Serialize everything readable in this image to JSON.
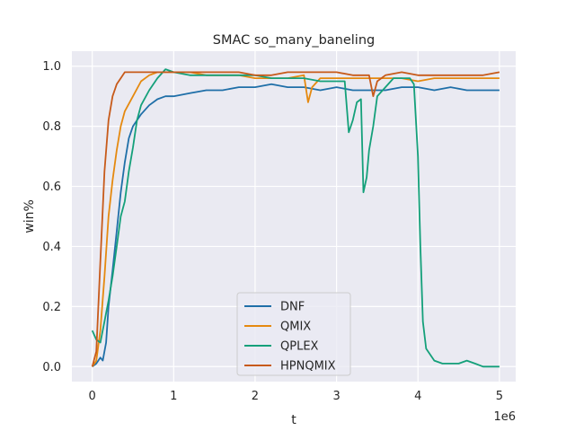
{
  "chart_data": {
    "type": "line",
    "title": "SMAC so_many_baneling",
    "xlabel": "t",
    "ylabel": "win%",
    "x_offset_label": "1e6",
    "xlim": [
      -0.25,
      5.2
    ],
    "ylim": [
      -0.05,
      1.05
    ],
    "x_ticks": [
      0,
      1,
      2,
      3,
      4,
      5
    ],
    "x_tick_labels": [
      "0",
      "1",
      "2",
      "3",
      "4",
      "5"
    ],
    "y_ticks": [
      0.0,
      0.2,
      0.4,
      0.6,
      0.8,
      1.0
    ],
    "y_tick_labels": [
      "0.0",
      "0.2",
      "0.4",
      "0.6",
      "0.8",
      "1.0"
    ],
    "grid": true,
    "legend_position": "lower-center",
    "series": [
      {
        "name": "DNF",
        "color": "#1f6fa8",
        "points": [
          [
            0,
            0.0
          ],
          [
            0.05,
            0.01
          ],
          [
            0.1,
            0.03
          ],
          [
            0.13,
            0.02
          ],
          [
            0.17,
            0.08
          ],
          [
            0.2,
            0.2
          ],
          [
            0.25,
            0.32
          ],
          [
            0.3,
            0.45
          ],
          [
            0.35,
            0.58
          ],
          [
            0.4,
            0.68
          ],
          [
            0.45,
            0.76
          ],
          [
            0.5,
            0.8
          ],
          [
            0.6,
            0.84
          ],
          [
            0.7,
            0.87
          ],
          [
            0.8,
            0.89
          ],
          [
            0.9,
            0.9
          ],
          [
            1.0,
            0.9
          ],
          [
            1.2,
            0.91
          ],
          [
            1.4,
            0.92
          ],
          [
            1.6,
            0.92
          ],
          [
            1.8,
            0.93
          ],
          [
            2.0,
            0.93
          ],
          [
            2.2,
            0.94
          ],
          [
            2.4,
            0.93
          ],
          [
            2.6,
            0.93
          ],
          [
            2.8,
            0.92
          ],
          [
            3.0,
            0.93
          ],
          [
            3.2,
            0.92
          ],
          [
            3.4,
            0.92
          ],
          [
            3.6,
            0.92
          ],
          [
            3.8,
            0.93
          ],
          [
            4.0,
            0.93
          ],
          [
            4.2,
            0.92
          ],
          [
            4.4,
            0.93
          ],
          [
            4.6,
            0.92
          ],
          [
            4.8,
            0.92
          ],
          [
            5.0,
            0.92
          ]
        ]
      },
      {
        "name": "QMIX",
        "color": "#e5890f",
        "points": [
          [
            0,
            0.0
          ],
          [
            0.05,
            0.02
          ],
          [
            0.1,
            0.12
          ],
          [
            0.15,
            0.3
          ],
          [
            0.2,
            0.5
          ],
          [
            0.25,
            0.62
          ],
          [
            0.3,
            0.72
          ],
          [
            0.35,
            0.8
          ],
          [
            0.4,
            0.85
          ],
          [
            0.5,
            0.9
          ],
          [
            0.6,
            0.95
          ],
          [
            0.7,
            0.97
          ],
          [
            0.8,
            0.98
          ],
          [
            0.9,
            0.98
          ],
          [
            1.0,
            0.98
          ],
          [
            1.2,
            0.98
          ],
          [
            1.4,
            0.97
          ],
          [
            1.6,
            0.97
          ],
          [
            1.8,
            0.97
          ],
          [
            2.0,
            0.96
          ],
          [
            2.2,
            0.96
          ],
          [
            2.4,
            0.96
          ],
          [
            2.6,
            0.97
          ],
          [
            2.65,
            0.88
          ],
          [
            2.7,
            0.93
          ],
          [
            2.8,
            0.96
          ],
          [
            3.0,
            0.96
          ],
          [
            3.2,
            0.96
          ],
          [
            3.4,
            0.96
          ],
          [
            3.6,
            0.96
          ],
          [
            3.8,
            0.96
          ],
          [
            4.0,
            0.95
          ],
          [
            4.2,
            0.96
          ],
          [
            4.4,
            0.96
          ],
          [
            4.6,
            0.96
          ],
          [
            4.8,
            0.96
          ],
          [
            5.0,
            0.96
          ]
        ]
      },
      {
        "name": "QPLEX",
        "color": "#14a07a",
        "points": [
          [
            0,
            0.12
          ],
          [
            0.05,
            0.09
          ],
          [
            0.1,
            0.08
          ],
          [
            0.15,
            0.15
          ],
          [
            0.2,
            0.22
          ],
          [
            0.25,
            0.3
          ],
          [
            0.3,
            0.4
          ],
          [
            0.35,
            0.5
          ],
          [
            0.4,
            0.55
          ],
          [
            0.45,
            0.65
          ],
          [
            0.5,
            0.73
          ],
          [
            0.55,
            0.82
          ],
          [
            0.6,
            0.87
          ],
          [
            0.7,
            0.92
          ],
          [
            0.8,
            0.96
          ],
          [
            0.9,
            0.99
          ],
          [
            1.0,
            0.98
          ],
          [
            1.2,
            0.97
          ],
          [
            1.4,
            0.97
          ],
          [
            1.6,
            0.97
          ],
          [
            1.8,
            0.97
          ],
          [
            2.0,
            0.97
          ],
          [
            2.2,
            0.96
          ],
          [
            2.4,
            0.96
          ],
          [
            2.6,
            0.96
          ],
          [
            2.8,
            0.95
          ],
          [
            3.0,
            0.95
          ],
          [
            3.1,
            0.95
          ],
          [
            3.15,
            0.78
          ],
          [
            3.2,
            0.82
          ],
          [
            3.25,
            0.88
          ],
          [
            3.3,
            0.89
          ],
          [
            3.33,
            0.58
          ],
          [
            3.37,
            0.63
          ],
          [
            3.4,
            0.72
          ],
          [
            3.45,
            0.8
          ],
          [
            3.5,
            0.9
          ],
          [
            3.6,
            0.93
          ],
          [
            3.7,
            0.96
          ],
          [
            3.8,
            0.96
          ],
          [
            3.9,
            0.96
          ],
          [
            3.95,
            0.94
          ],
          [
            4.0,
            0.7
          ],
          [
            4.03,
            0.4
          ],
          [
            4.06,
            0.15
          ],
          [
            4.1,
            0.06
          ],
          [
            4.2,
            0.02
          ],
          [
            4.3,
            0.01
          ],
          [
            4.5,
            0.01
          ],
          [
            4.6,
            0.02
          ],
          [
            4.7,
            0.01
          ],
          [
            4.8,
            0.0
          ],
          [
            5.0,
            0.0
          ]
        ]
      },
      {
        "name": "HPNQMIX",
        "color": "#c75a1a",
        "points": [
          [
            0,
            0.0
          ],
          [
            0.05,
            0.05
          ],
          [
            0.1,
            0.35
          ],
          [
            0.15,
            0.65
          ],
          [
            0.2,
            0.82
          ],
          [
            0.25,
            0.9
          ],
          [
            0.3,
            0.94
          ],
          [
            0.35,
            0.96
          ],
          [
            0.4,
            0.98
          ],
          [
            0.5,
            0.98
          ],
          [
            0.6,
            0.98
          ],
          [
            0.7,
            0.98
          ],
          [
            0.8,
            0.98
          ],
          [
            1.0,
            0.98
          ],
          [
            1.2,
            0.98
          ],
          [
            1.4,
            0.98
          ],
          [
            1.6,
            0.98
          ],
          [
            1.8,
            0.98
          ],
          [
            2.0,
            0.97
          ],
          [
            2.2,
            0.97
          ],
          [
            2.4,
            0.98
          ],
          [
            2.6,
            0.98
          ],
          [
            2.8,
            0.98
          ],
          [
            3.0,
            0.98
          ],
          [
            3.2,
            0.97
          ],
          [
            3.4,
            0.97
          ],
          [
            3.45,
            0.9
          ],
          [
            3.5,
            0.95
          ],
          [
            3.6,
            0.97
          ],
          [
            3.8,
            0.98
          ],
          [
            4.0,
            0.97
          ],
          [
            4.2,
            0.97
          ],
          [
            4.4,
            0.97
          ],
          [
            4.6,
            0.97
          ],
          [
            4.8,
            0.97
          ],
          [
            5.0,
            0.98
          ]
        ]
      }
    ]
  }
}
